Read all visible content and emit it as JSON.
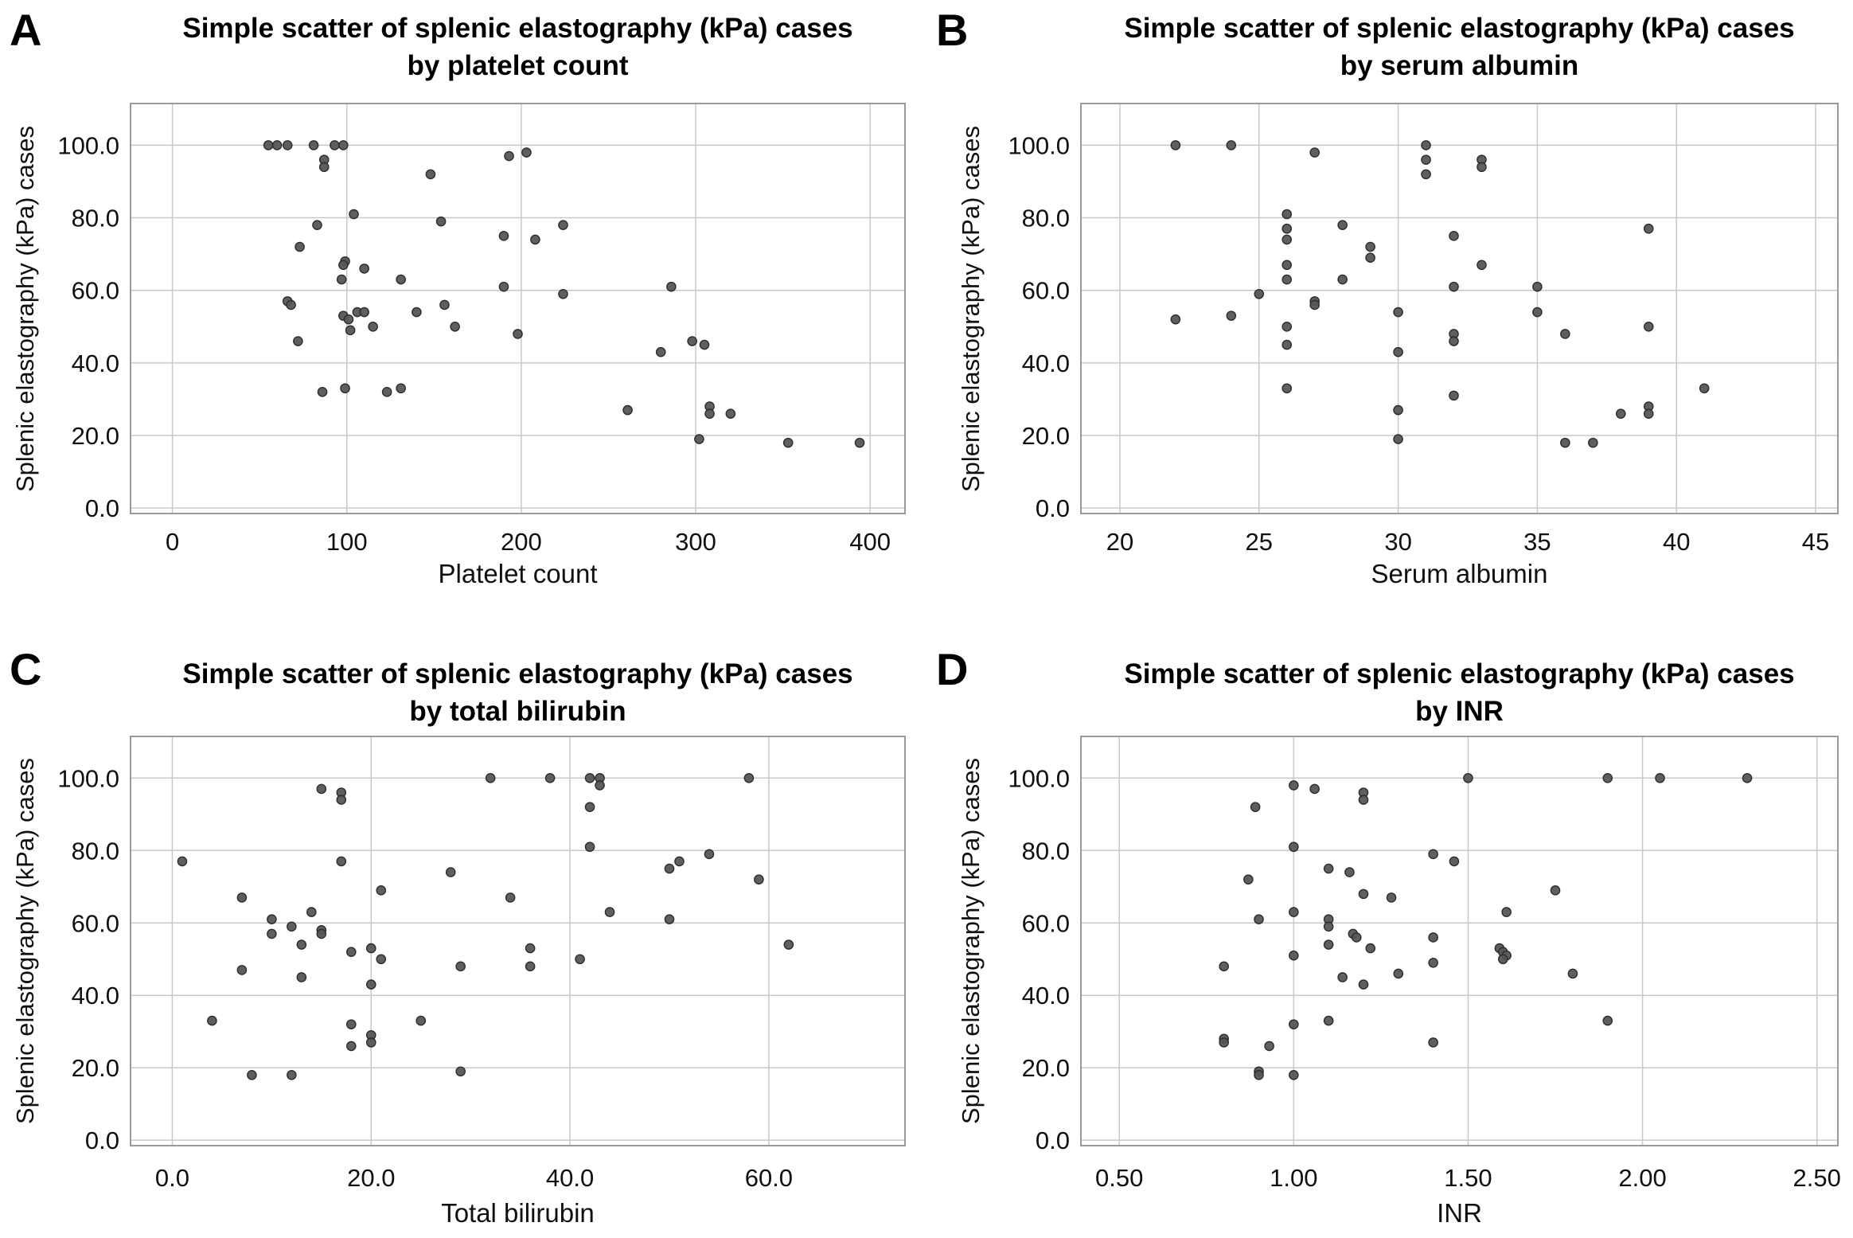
{
  "figure": {
    "type": "four-panel scatter figure",
    "shared_y_axis_label": "Splenic elastography (kPa) cases",
    "panel_letters": [
      "A",
      "B",
      "C",
      "D"
    ]
  },
  "style": {
    "background": "#ffffff",
    "point_fill": "#565656",
    "point_stroke": "#2d2d2d",
    "grid_color": "#c9c9c9",
    "frame_color": "#9a9a9a",
    "text_color": "#000000",
    "tick_label_color": "#101010"
  },
  "chart_data": [
    {
      "id": "A",
      "type": "scatter",
      "title": "Simple scatter of splenic elastography (kPa) cases",
      "subtitle": "by platelet count",
      "xlabel": "Platelet count",
      "ylabel": "Splenic elastography (kPa) cases",
      "grid": true,
      "legend": false,
      "xlim": [
        -24,
        420
      ],
      "ylim": [
        -1.5,
        111.5
      ],
      "x_ticks": [
        0,
        100,
        200,
        300,
        400
      ],
      "x_tick_labels": [
        "0",
        "100",
        "200",
        "300",
        "400"
      ],
      "y_ticks": [
        0,
        20,
        40,
        60,
        80,
        100
      ],
      "y_tick_labels": [
        "0.0",
        "20.0",
        "40.0",
        "60.0",
        "80.0",
        "100.0"
      ],
      "points": [
        [
          55,
          100
        ],
        [
          60,
          100
        ],
        [
          66,
          100
        ],
        [
          81,
          100
        ],
        [
          93,
          100
        ],
        [
          98,
          100
        ],
        [
          87,
          96
        ],
        [
          87,
          94
        ],
        [
          148,
          92
        ],
        [
          193,
          97
        ],
        [
          203,
          98
        ],
        [
          104,
          81
        ],
        [
          83,
          78
        ],
        [
          154,
          79
        ],
        [
          224,
          78
        ],
        [
          73,
          72
        ],
        [
          190,
          75
        ],
        [
          208,
          74
        ],
        [
          99,
          68
        ],
        [
          98,
          67
        ],
        [
          110,
          66
        ],
        [
          97,
          63
        ],
        [
          131,
          63
        ],
        [
          190,
          61
        ],
        [
          286,
          61
        ],
        [
          224,
          59
        ],
        [
          66,
          57
        ],
        [
          68,
          56
        ],
        [
          156,
          56
        ],
        [
          98,
          53
        ],
        [
          101,
          52
        ],
        [
          106,
          54
        ],
        [
          110,
          54
        ],
        [
          140,
          54
        ],
        [
          115,
          50
        ],
        [
          102,
          49
        ],
        [
          162,
          50
        ],
        [
          198,
          48
        ],
        [
          72,
          46
        ],
        [
          298,
          46
        ],
        [
          305,
          45
        ],
        [
          280,
          43
        ],
        [
          86,
          32
        ],
        [
          99,
          33
        ],
        [
          123,
          32
        ],
        [
          131,
          33
        ],
        [
          261,
          27
        ],
        [
          308,
          28
        ],
        [
          308,
          26
        ],
        [
          320,
          26
        ],
        [
          302,
          19
        ],
        [
          353,
          18
        ],
        [
          394,
          18
        ]
      ]
    },
    {
      "id": "B",
      "type": "scatter",
      "title": "Simple scatter of splenic elastography (kPa) cases",
      "subtitle": "by serum albumin",
      "xlabel": "Serum albumin",
      "ylabel": "Splenic elastography (kPa) cases",
      "grid": true,
      "legend": false,
      "xlim": [
        18.6,
        45.8
      ],
      "ylim": [
        -1.5,
        111.5
      ],
      "x_ticks": [
        20,
        25,
        30,
        35,
        40,
        45
      ],
      "x_tick_labels": [
        "20",
        "25",
        "30",
        "35",
        "40",
        "45"
      ],
      "y_ticks": [
        0,
        20,
        40,
        60,
        80,
        100
      ],
      "y_tick_labels": [
        "0.0",
        "20.0",
        "40.0",
        "60.0",
        "80.0",
        "100.0"
      ],
      "points": [
        [
          22,
          100
        ],
        [
          24,
          100
        ],
        [
          27,
          98
        ],
        [
          31,
          100
        ],
        [
          31,
          96
        ],
        [
          31,
          92
        ],
        [
          33,
          96
        ],
        [
          33,
          94
        ],
        [
          26,
          81
        ],
        [
          26,
          77
        ],
        [
          26,
          74
        ],
        [
          28,
          78
        ],
        [
          39,
          77
        ],
        [
          29,
          72
        ],
        [
          29,
          69
        ],
        [
          32,
          75
        ],
        [
          33,
          67
        ],
        [
          26,
          67
        ],
        [
          26,
          63
        ],
        [
          28,
          63
        ],
        [
          32,
          61
        ],
        [
          35,
          61
        ],
        [
          25,
          59
        ],
        [
          27,
          57
        ],
        [
          27,
          56
        ],
        [
          22,
          52
        ],
        [
          24,
          53
        ],
        [
          30,
          54
        ],
        [
          35,
          54
        ],
        [
          26,
          50
        ],
        [
          39,
          50
        ],
        [
          32,
          48
        ],
        [
          32,
          46
        ],
        [
          36,
          48
        ],
        [
          26,
          45
        ],
        [
          30,
          43
        ],
        [
          26,
          33
        ],
        [
          32,
          31
        ],
        [
          41,
          33
        ],
        [
          30,
          27
        ],
        [
          38,
          26
        ],
        [
          39,
          28
        ],
        [
          39,
          26
        ],
        [
          30,
          19
        ],
        [
          36,
          18
        ],
        [
          37,
          18
        ]
      ]
    },
    {
      "id": "C",
      "type": "scatter",
      "title": "Simple scatter of splenic elastography (kPa) cases",
      "subtitle": "by total bilirubin",
      "xlabel": "Total bilirubin",
      "ylabel": "Splenic elastography (kPa) cases",
      "grid": true,
      "legend": false,
      "xlim": [
        -4.2,
        73.7
      ],
      "ylim": [
        -1.5,
        111.5
      ],
      "x_ticks": [
        0,
        20,
        40,
        60
      ],
      "x_tick_labels": [
        "0.0",
        "20.0",
        "40.0",
        "60.0"
      ],
      "y_ticks": [
        0,
        20,
        40,
        60,
        80,
        100
      ],
      "y_tick_labels": [
        "0.0",
        "20.0",
        "40.0",
        "60.0",
        "80.0",
        "100.0"
      ],
      "points": [
        [
          1,
          77
        ],
        [
          15,
          97
        ],
        [
          17,
          96
        ],
        [
          17,
          94
        ],
        [
          32,
          100
        ],
        [
          38,
          100
        ],
        [
          42,
          100
        ],
        [
          43,
          100
        ],
        [
          43,
          98
        ],
        [
          42,
          92
        ],
        [
          42,
          81
        ],
        [
          58,
          100
        ],
        [
          17,
          77
        ],
        [
          54,
          79
        ],
        [
          51,
          77
        ],
        [
          50,
          75
        ],
        [
          59,
          72
        ],
        [
          28,
          74
        ],
        [
          21,
          69
        ],
        [
          7,
          67
        ],
        [
          34,
          67
        ],
        [
          44,
          63
        ],
        [
          14,
          63
        ],
        [
          10,
          61
        ],
        [
          50,
          61
        ],
        [
          12,
          59
        ],
        [
          10,
          57
        ],
        [
          15,
          58
        ],
        [
          15,
          57
        ],
        [
          13,
          54
        ],
        [
          18,
          52
        ],
        [
          20,
          53
        ],
        [
          21,
          50
        ],
        [
          36,
          53
        ],
        [
          36,
          48
        ],
        [
          29,
          48
        ],
        [
          41,
          50
        ],
        [
          62,
          54
        ],
        [
          7,
          47
        ],
        [
          13,
          45
        ],
        [
          20,
          43
        ],
        [
          4,
          33
        ],
        [
          25,
          33
        ],
        [
          18,
          32
        ],
        [
          20,
          29
        ],
        [
          20,
          27
        ],
        [
          18,
          26
        ],
        [
          8,
          18
        ],
        [
          12,
          18
        ],
        [
          29,
          19
        ]
      ]
    },
    {
      "id": "D",
      "type": "scatter",
      "title": "Simple scatter of splenic elastography (kPa) cases",
      "subtitle": "by INR",
      "xlabel": "INR",
      "ylabel": "Splenic elastography (kPa) cases",
      "grid": true,
      "legend": false,
      "xlim": [
        0.39,
        2.56
      ],
      "ylim": [
        -1.5,
        111.5
      ],
      "x_ticks": [
        0.5,
        1.0,
        1.5,
        2.0,
        2.5
      ],
      "x_tick_labels": [
        "0.50",
        "1.00",
        "1.50",
        "2.00",
        "2.50"
      ],
      "y_ticks": [
        0,
        20,
        40,
        60,
        80,
        100
      ],
      "y_tick_labels": [
        "0.0",
        "20.0",
        "40.0",
        "60.0",
        "80.0",
        "100.0"
      ],
      "points": [
        [
          1.0,
          98
        ],
        [
          1.06,
          97
        ],
        [
          1.2,
          96
        ],
        [
          1.2,
          94
        ],
        [
          0.89,
          92
        ],
        [
          1.5,
          100
        ],
        [
          1.9,
          100
        ],
        [
          2.05,
          100
        ],
        [
          2.3,
          100
        ],
        [
          1.0,
          81
        ],
        [
          1.4,
          79
        ],
        [
          1.46,
          77
        ],
        [
          1.1,
          75
        ],
        [
          1.16,
          74
        ],
        [
          0.87,
          72
        ],
        [
          1.2,
          68
        ],
        [
          1.28,
          67
        ],
        [
          1.75,
          69
        ],
        [
          1.0,
          63
        ],
        [
          0.9,
          61
        ],
        [
          1.61,
          63
        ],
        [
          1.1,
          61
        ],
        [
          1.1,
          59
        ],
        [
          1.17,
          57
        ],
        [
          1.18,
          56
        ],
        [
          1.4,
          56
        ],
        [
          1.1,
          54
        ],
        [
          1.22,
          53
        ],
        [
          1.59,
          53
        ],
        [
          1.6,
          52
        ],
        [
          1.61,
          51
        ],
        [
          1.6,
          50
        ],
        [
          1.0,
          51
        ],
        [
          0.8,
          48
        ],
        [
          1.4,
          49
        ],
        [
          1.14,
          45
        ],
        [
          1.3,
          46
        ],
        [
          1.8,
          46
        ],
        [
          1.2,
          43
        ],
        [
          1.0,
          32
        ],
        [
          1.1,
          33
        ],
        [
          1.9,
          33
        ],
        [
          0.8,
          28
        ],
        [
          0.8,
          27
        ],
        [
          0.93,
          26
        ],
        [
          1.4,
          27
        ],
        [
          0.9,
          19
        ],
        [
          0.9,
          18
        ],
        [
          1.0,
          18
        ]
      ]
    }
  ]
}
